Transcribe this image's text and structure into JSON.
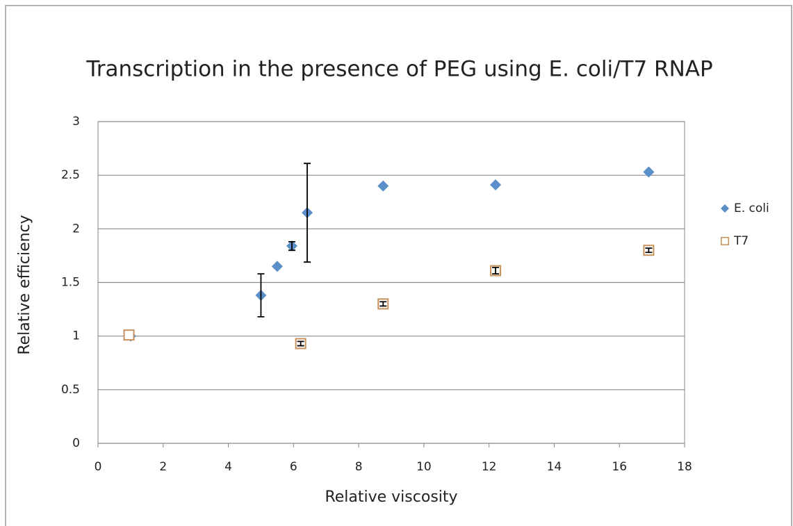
{
  "chart_data": {
    "type": "scatter",
    "title": "Transcription in the presence of PEG using E. coli/T7 RNAP",
    "x_label": "Relative viscosity",
    "y_label": "Relative efficiency",
    "xlim": [
      0,
      18
    ],
    "xticks": [
      0,
      2,
      4,
      6,
      8,
      10,
      12,
      14,
      16,
      18
    ],
    "ylim": [
      0,
      3
    ],
    "yticks": [
      0,
      0.5,
      1,
      1.5,
      2,
      2.5,
      3
    ],
    "grid": true,
    "legend": "right",
    "series": [
      {
        "name": "E. coli",
        "color": "#5b8fc9",
        "marker": "diamond",
        "x": [
          1.0,
          5.0,
          5.5,
          5.95,
          6.42,
          8.75,
          12.2,
          16.9
        ],
        "values": [
          1.0,
          1.38,
          1.65,
          1.84,
          2.15,
          2.4,
          2.41,
          2.53
        ],
        "errors": [
          null,
          0.2,
          null,
          0.04,
          0.46,
          null,
          null,
          null
        ]
      },
      {
        "name": "T7",
        "color": "#c8905a",
        "marker": "square-open",
        "x": [
          0.95,
          6.22,
          8.75,
          12.2,
          16.9
        ],
        "values": [
          1.01,
          0.93,
          1.3,
          1.61,
          1.8
        ],
        "errors": [
          null,
          0.02,
          0.02,
          0.03,
          0.02
        ]
      }
    ]
  }
}
